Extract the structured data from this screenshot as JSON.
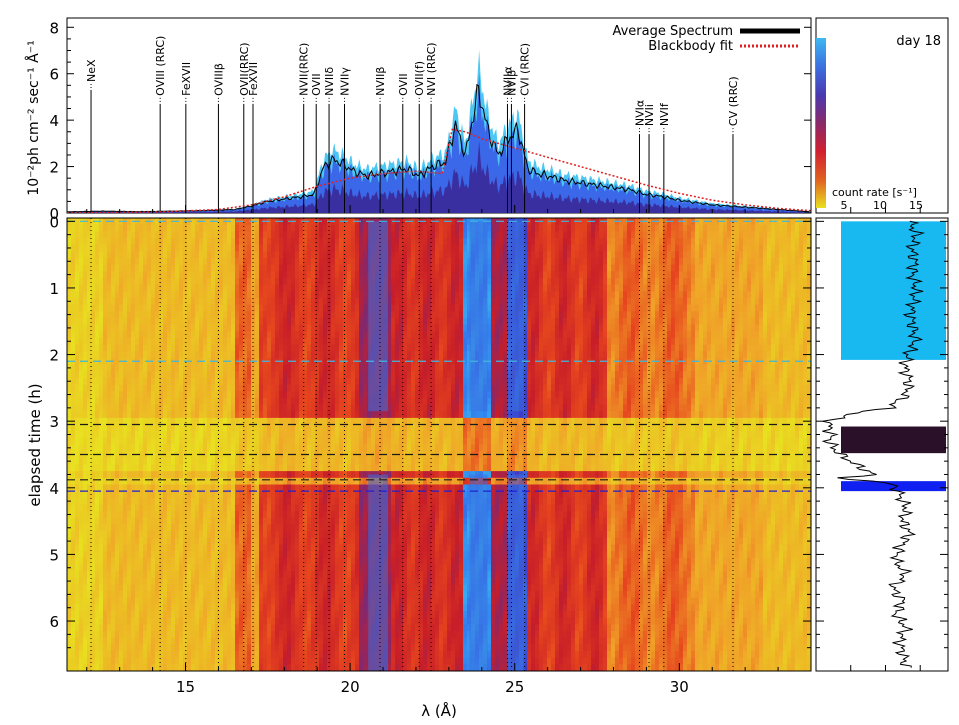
{
  "chart_data": {
    "type": "heatmap",
    "panels": {
      "spectrum": {
        "ylabel": "10⁻²ph cm⁻² sec⁻¹ Å⁻¹",
        "ylim": [
          0,
          8.4
        ],
        "yticks": [
          0,
          2,
          4,
          6,
          8
        ],
        "legend": [
          {
            "name": "Average Spectrum",
            "color": "#000000",
            "style": "solid"
          },
          {
            "name": "Blackbody fit",
            "color": "#e02020",
            "style": "dotted"
          }
        ],
        "average_spectrum": {
          "x": [
            11.4,
            12.5,
            13.5,
            14.5,
            15.5,
            16.5,
            17.0,
            17.5,
            18.0,
            18.5,
            18.9,
            19.2,
            19.5,
            19.8,
            20.1,
            20.5,
            20.9,
            21.3,
            21.7,
            22.1,
            22.5,
            22.9,
            23.2,
            23.5,
            23.9,
            24.2,
            24.5,
            24.8,
            25.1,
            25.4,
            25.7,
            26.0,
            26.5,
            27.0,
            27.5,
            28.0,
            28.5,
            29.0,
            29.5,
            30.0,
            30.5,
            31.0,
            31.5,
            32.0,
            32.5,
            33.0,
            33.5,
            34.0
          ],
          "y": [
            0.05,
            0.08,
            0.06,
            0.08,
            0.1,
            0.15,
            0.3,
            0.5,
            0.6,
            0.7,
            0.8,
            2.0,
            2.3,
            2.1,
            1.8,
            1.6,
            1.7,
            1.8,
            1.9,
            1.6,
            2.0,
            2.2,
            3.8,
            2.5,
            5.3,
            3.5,
            2.5,
            3.2,
            3.6,
            1.9,
            1.7,
            1.6,
            1.4,
            1.3,
            1.2,
            1.1,
            1.0,
            0.8,
            0.7,
            0.55,
            0.45,
            0.35,
            0.3,
            0.25,
            0.2,
            0.15,
            0.1,
            0.05
          ]
        },
        "blackbody_fit": {
          "x": [
            11.4,
            13.0,
            14.5,
            16.0,
            17.0,
            18.0,
            19.0,
            20.0,
            21.0,
            22.0,
            22.8,
            23.1,
            23.5,
            24.0,
            24.5,
            25.0,
            25.5,
            26.0,
            27.0,
            28.0,
            29.0,
            30.0,
            31.0,
            32.0,
            33.0,
            34.0
          ],
          "y": [
            0.0,
            0.02,
            0.06,
            0.15,
            0.35,
            0.7,
            1.15,
            1.5,
            1.7,
            1.8,
            1.7,
            3.6,
            3.5,
            3.2,
            3.0,
            2.8,
            2.6,
            2.4,
            2.0,
            1.6,
            1.2,
            0.85,
            0.55,
            0.35,
            0.2,
            0.1
          ]
        },
        "lines": [
          {
            "label": "NeX",
            "wavelength": 12.13,
            "height": 5.3
          },
          {
            "label": "OVIII (RRC)",
            "wavelength": 14.23,
            "height": 4.7
          },
          {
            "label": "FeXVII",
            "wavelength": 15.01,
            "height": 4.7
          },
          {
            "label": "OVIIIβ",
            "wavelength": 16.0,
            "height": 4.7
          },
          {
            "label": "OVII(RRC)",
            "wavelength": 16.77,
            "height": 4.7
          },
          {
            "label": "FeXVII",
            "wavelength": 17.05,
            "height": 4.7
          },
          {
            "label": "NVII(RRC)",
            "wavelength": 18.59,
            "height": 4.7
          },
          {
            "label": "OVII",
            "wavelength": 18.97,
            "height": 4.7
          },
          {
            "label": "NVIIδ",
            "wavelength": 19.36,
            "height": 4.7
          },
          {
            "label": "NVIIγ",
            "wavelength": 19.83,
            "height": 4.7
          },
          {
            "label": "NVIIβ",
            "wavelength": 20.91,
            "height": 4.7
          },
          {
            "label": "OVII",
            "wavelength": 21.6,
            "height": 4.7
          },
          {
            "label": "OVII(f)",
            "wavelength": 22.1,
            "height": 4.7
          },
          {
            "label": "NVI (RRC)",
            "wavelength": 22.46,
            "height": 4.7
          },
          {
            "label": "NVIIα",
            "wavelength": 24.78,
            "height": 4.7
          },
          {
            "label": "NVIβ",
            "wavelength": 24.9,
            "height": 4.7
          },
          {
            "label": "CVI (RRC)",
            "wavelength": 25.3,
            "height": 4.7
          },
          {
            "label": "NVIα",
            "wavelength": 28.79,
            "height": 3.4
          },
          {
            "label": "NVIi",
            "wavelength": 29.08,
            "height": 3.4
          },
          {
            "label": "NVIf",
            "wavelength": 29.53,
            "height": 3.4
          },
          {
            "label": "CV (RRC)",
            "wavelength": 31.63,
            "height": 3.4
          }
        ]
      },
      "heatmap": {
        "xlabel": "λ (Å)",
        "ylabel": "elapsed time (h)",
        "xlim": [
          11.4,
          34.0
        ],
        "ylim": [
          6.75,
          -0.05
        ],
        "xticks": [
          15,
          20,
          25,
          30
        ],
        "yticks": [
          0,
          1,
          2,
          3,
          4,
          5,
          6
        ],
        "dashed_times": [
          {
            "t": 0.0,
            "color": "#3fb7e0"
          },
          {
            "t": 2.1,
            "color": "#3fb7e0"
          },
          {
            "t": 3.05,
            "color": "#1a1a1a"
          },
          {
            "t": 3.5,
            "color": "#1a1a1a"
          },
          {
            "t": 3.88,
            "color": "#1a1a1a"
          },
          {
            "t": 4.05,
            "color": "#2020d0"
          }
        ],
        "blue_bands": [
          {
            "center": 23.9,
            "width": 0.55,
            "t_from": 0.0,
            "t_to": 2.85
          },
          {
            "center": 23.9,
            "width": 0.55,
            "t_from": 3.8,
            "t_to": 6.75
          },
          {
            "center": 25.05,
            "width": 0.5,
            "t_from": 0.0,
            "t_to": 2.85
          },
          {
            "center": 25.05,
            "width": 0.5,
            "t_from": 3.8,
            "t_to": 6.75
          },
          {
            "center": 20.85,
            "width": 0.6,
            "t_from": 0.0,
            "t_to": 2.85
          },
          {
            "center": 20.85,
            "width": 0.6,
            "t_from": 3.8,
            "t_to": 6.75
          }
        ]
      },
      "colorbar": {
        "annotation": "day 18",
        "label": "count rate [s⁻¹]",
        "ticks": [
          "5",
          "10",
          "15"
        ],
        "stops": [
          "#e8e020",
          "#e06020",
          "#d02030",
          "#8a2a6a",
          "#4a3ab0",
          "#3a70e0",
          "#40b8f0"
        ]
      },
      "lightcurve": {
        "t": [
          0.0,
          0.2,
          0.4,
          0.6,
          0.8,
          1.0,
          1.2,
          1.4,
          1.6,
          1.8,
          2.0,
          2.2,
          2.4,
          2.6,
          2.8,
          2.9,
          3.0,
          3.1,
          3.2,
          3.3,
          3.4,
          3.5,
          3.6,
          3.7,
          3.8,
          3.85,
          3.9,
          3.95,
          4.0,
          4.1,
          4.3,
          4.5,
          4.7,
          4.9,
          5.1,
          5.3,
          5.5,
          5.7,
          5.9,
          6.1,
          6.3,
          6.5,
          6.7
        ],
        "rate": [
          13.5,
          14.5,
          13.8,
          14.2,
          13.9,
          14.4,
          14.1,
          13.6,
          14.0,
          14.3,
          13.2,
          12.8,
          13.4,
          13.0,
          10.5,
          4.5,
          2.0,
          1.8,
          2.2,
          1.9,
          2.5,
          3.5,
          5.0,
          6.5,
          8.5,
          3.5,
          8.0,
          11.0,
          11.5,
          12.0,
          13.0,
          12.5,
          13.5,
          12.0,
          11.5,
          13.0,
          11.0,
          12.5,
          11.5,
          13.0,
          12.0,
          12.5,
          13.0
        ],
        "rate_range": [
          0,
          19
        ],
        "segments": [
          {
            "t_from": 0.0,
            "t_to": 2.08,
            "color": "#18b8f0"
          },
          {
            "t_from": 3.08,
            "t_to": 3.48,
            "color": "#2a1028"
          },
          {
            "t_from": 3.9,
            "t_to": 4.05,
            "color": "#1020f0"
          }
        ]
      }
    }
  }
}
